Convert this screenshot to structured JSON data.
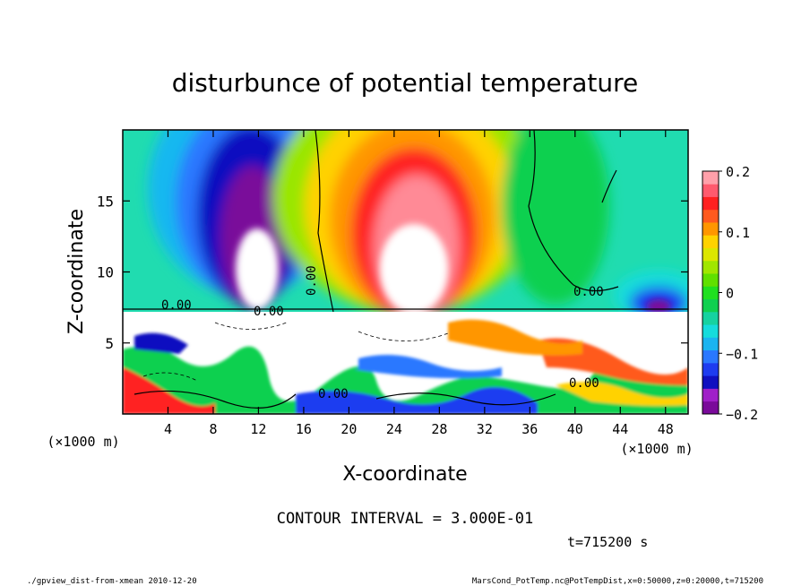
{
  "chart_data": {
    "type": "heatmap",
    "title": "disturbunce of potential temperature",
    "xlabel": "X-coordinate",
    "ylabel": "Z-coordinate",
    "x_unit": "(×1000 m)",
    "y_unit": "(×1000 m)",
    "xlim": [
      0,
      50
    ],
    "ylim": [
      0,
      20
    ],
    "x_ticks": [
      4,
      8,
      12,
      16,
      20,
      24,
      28,
      32,
      36,
      40,
      44,
      48
    ],
    "y_ticks": [
      5,
      10,
      15
    ],
    "colorbar": {
      "range": [
        -0.2,
        0.2
      ],
      "tick_labels": [
        "0.2",
        "0.1",
        "0",
        "−0.1",
        "−0.2"
      ],
      "tick_values": [
        0.2,
        0.1,
        0,
        -0.1,
        -0.2
      ],
      "colors": [
        "#7a0a9a",
        "#a020c8",
        "#1010c0",
        "#1e3cf0",
        "#2a78ff",
        "#1ab4f0",
        "#15dcdc",
        "#16d2a0",
        "#10d050",
        "#20e020",
        "#60e000",
        "#a0e600",
        "#dce600",
        "#ffd200",
        "#ff9600",
        "#ff5a1e",
        "#ff2020",
        "#ff5a6e",
        "#ffa0aa"
      ]
    },
    "contour_labels": [
      "0.00",
      "0.00",
      "0.00",
      "0.00",
      "0.00",
      "0.00"
    ],
    "contour_interval_text": "CONTOUR INTERVAL = 3.000E-01",
    "time_text": "t=715200 s"
  },
  "footer": {
    "left": "./gpview_dist-from-xmean  2010-12-20",
    "right": "MarsCond_PotTemp.nc@PotTempDist,x=0:50000,z=0:20000,t=715200"
  }
}
